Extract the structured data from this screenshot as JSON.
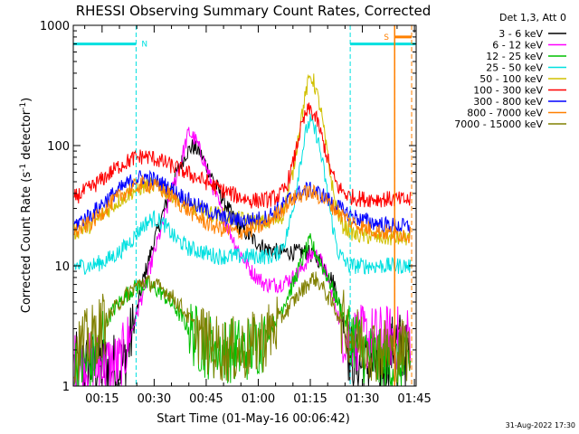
{
  "chart_data": {
    "type": "line",
    "title": "RHESSI Observing Summary Count Rates, Corrected",
    "xlabel": "Start Time (01-May-16 00:06:42)",
    "ylabel_main": "Corrected Count Rate (s",
    "ylabel_sup1": "-1",
    "ylabel_mid": " detector",
    "ylabel_sup2": "-1",
    "ylabel_end": ")",
    "footer": "31-Aug-2022 17:30",
    "y_scale": "log",
    "ylim": [
      1,
      1000
    ],
    "xlim_minutes": [
      6.7,
      105.5
    ],
    "x_ticks": [
      {
        "minute": 15,
        "label": "00:15"
      },
      {
        "minute": 30,
        "label": "00:30"
      },
      {
        "minute": 45,
        "label": "00:45"
      },
      {
        "minute": 60,
        "label": "01:00"
      },
      {
        "minute": 75,
        "label": "01:15"
      },
      {
        "minute": 90,
        "label": "01:30"
      },
      {
        "minute": 105,
        "label": "01:45"
      }
    ],
    "y_ticks": [
      {
        "value": 1,
        "label": "1"
      },
      {
        "value": 10,
        "label": "10"
      },
      {
        "value": 100,
        "label": "100"
      },
      {
        "value": 1000,
        "label": "1000"
      }
    ],
    "legend_header": "Det 1,3, Att 0",
    "legend_placement": "right",
    "series": [
      {
        "name": "3 - 6 keV",
        "color": "#000000",
        "points": [
          [
            7,
            1.5
          ],
          [
            15,
            1.5
          ],
          [
            19,
            1.5
          ],
          [
            21,
            1.5
          ],
          [
            24,
            3
          ],
          [
            27,
            8
          ],
          [
            30,
            16
          ],
          [
            33,
            30
          ],
          [
            36,
            55
          ],
          [
            39,
            85
          ],
          [
            41,
            98
          ],
          [
            43,
            90
          ],
          [
            46,
            60
          ],
          [
            50,
            35
          ],
          [
            54,
            22
          ],
          [
            58,
            17
          ],
          [
            62,
            14
          ],
          [
            66,
            13
          ],
          [
            70,
            13
          ],
          [
            72,
            13
          ],
          [
            74,
            13
          ],
          [
            76,
            12
          ],
          [
            78,
            11
          ],
          [
            80,
            9
          ],
          [
            82,
            7
          ],
          [
            84,
            4
          ],
          [
            86,
            2
          ],
          [
            88,
            1.5
          ],
          [
            92,
            1.5
          ],
          [
            96,
            1.5
          ],
          [
            100,
            2.5
          ],
          [
            104,
            1.5
          ]
        ]
      },
      {
        "name": "6 - 12 keV",
        "color": "#ff00ff",
        "points": [
          [
            7,
            1.5
          ],
          [
            20,
            1.5
          ],
          [
            23,
            2.5
          ],
          [
            26,
            5
          ],
          [
            29,
            10
          ],
          [
            32,
            20
          ],
          [
            35,
            40
          ],
          [
            38,
            80
          ],
          [
            40,
            130
          ],
          [
            42,
            110
          ],
          [
            44,
            80
          ],
          [
            47,
            45
          ],
          [
            50,
            25
          ],
          [
            54,
            14
          ],
          [
            58,
            9
          ],
          [
            62,
            7
          ],
          [
            66,
            7
          ],
          [
            70,
            8
          ],
          [
            72,
            9
          ],
          [
            74,
            11
          ],
          [
            76,
            13
          ],
          [
            78,
            11
          ],
          [
            80,
            8
          ],
          [
            82,
            5
          ],
          [
            84,
            3
          ],
          [
            86,
            2.5
          ],
          [
            90,
            2.5
          ],
          [
            96,
            2.5
          ],
          [
            104,
            2.5
          ]
        ]
      },
      {
        "name": "12 - 25 keV",
        "color": "#00c000",
        "points": [
          [
            7,
            1.5
          ],
          [
            12,
            1.5
          ],
          [
            16,
            3.5
          ],
          [
            20,
            5
          ],
          [
            24,
            6.5
          ],
          [
            28,
            7
          ],
          [
            32,
            6
          ],
          [
            36,
            4.5
          ],
          [
            40,
            3
          ],
          [
            44,
            2.2
          ],
          [
            50,
            2
          ],
          [
            56,
            2
          ],
          [
            62,
            2.5
          ],
          [
            66,
            4
          ],
          [
            70,
            7
          ],
          [
            72,
            10
          ],
          [
            74,
            14
          ],
          [
            75,
            16
          ],
          [
            77,
            12
          ],
          [
            80,
            8
          ],
          [
            83,
            5
          ],
          [
            86,
            3
          ],
          [
            90,
            2
          ],
          [
            96,
            1.5
          ],
          [
            104,
            1.5
          ]
        ]
      },
      {
        "name": "25 - 50 keV",
        "color": "#00e0e0",
        "points": [
          [
            7,
            10
          ],
          [
            12,
            10
          ],
          [
            16,
            11
          ],
          [
            20,
            13
          ],
          [
            24,
            17
          ],
          [
            27,
            22
          ],
          [
            30,
            25
          ],
          [
            33,
            22
          ],
          [
            36,
            17
          ],
          [
            40,
            14
          ],
          [
            44,
            13
          ],
          [
            48,
            12
          ],
          [
            52,
            12
          ],
          [
            56,
            12
          ],
          [
            60,
            12
          ],
          [
            64,
            12
          ],
          [
            66,
            13
          ],
          [
            68,
            17
          ],
          [
            70,
            30
          ],
          [
            72,
            70
          ],
          [
            74,
            140
          ],
          [
            75,
            160
          ],
          [
            77,
            120
          ],
          [
            79,
            60
          ],
          [
            81,
            25
          ],
          [
            83,
            13
          ],
          [
            86,
            10
          ],
          [
            90,
            10
          ],
          [
            96,
            10
          ],
          [
            104,
            10
          ]
        ]
      },
      {
        "name": "50 - 100 keV",
        "color": "#d0c000",
        "points": [
          [
            7,
            19
          ],
          [
            12,
            22
          ],
          [
            16,
            28
          ],
          [
            20,
            35
          ],
          [
            24,
            42
          ],
          [
            28,
            47
          ],
          [
            32,
            45
          ],
          [
            36,
            38
          ],
          [
            40,
            32
          ],
          [
            44,
            28
          ],
          [
            48,
            27
          ],
          [
            52,
            25
          ],
          [
            56,
            24
          ],
          [
            60,
            23
          ],
          [
            64,
            23
          ],
          [
            67,
            26
          ],
          [
            70,
            60
          ],
          [
            72,
            150
          ],
          [
            74,
            300
          ],
          [
            75,
            380
          ],
          [
            76,
            340
          ],
          [
            78,
            200
          ],
          [
            80,
            80
          ],
          [
            82,
            35
          ],
          [
            84,
            22
          ],
          [
            88,
            18
          ],
          [
            96,
            17
          ],
          [
            104,
            17
          ]
        ]
      },
      {
        "name": "100 - 300 keV",
        "color": "#ff0000",
        "points": [
          [
            7,
            37
          ],
          [
            12,
            45
          ],
          [
            16,
            55
          ],
          [
            20,
            68
          ],
          [
            24,
            78
          ],
          [
            27,
            82
          ],
          [
            30,
            78
          ],
          [
            34,
            70
          ],
          [
            38,
            62
          ],
          [
            42,
            55
          ],
          [
            46,
            48
          ],
          [
            50,
            42
          ],
          [
            54,
            38
          ],
          [
            58,
            35
          ],
          [
            62,
            35
          ],
          [
            66,
            38
          ],
          [
            68,
            45
          ],
          [
            70,
            70
          ],
          [
            72,
            130
          ],
          [
            74,
            190
          ],
          [
            75,
            200
          ],
          [
            77,
            160
          ],
          [
            79,
            100
          ],
          [
            81,
            60
          ],
          [
            83,
            45
          ],
          [
            86,
            38
          ],
          [
            90,
            36
          ],
          [
            96,
            36
          ],
          [
            104,
            35
          ]
        ]
      },
      {
        "name": "300 - 800 keV",
        "color": "#0000ff",
        "points": [
          [
            7,
            22
          ],
          [
            12,
            27
          ],
          [
            16,
            35
          ],
          [
            20,
            43
          ],
          [
            24,
            52
          ],
          [
            27,
            55
          ],
          [
            30,
            52
          ],
          [
            34,
            45
          ],
          [
            38,
            38
          ],
          [
            42,
            32
          ],
          [
            46,
            28
          ],
          [
            50,
            25
          ],
          [
            54,
            24
          ],
          [
            58,
            24
          ],
          [
            62,
            25
          ],
          [
            66,
            30
          ],
          [
            70,
            38
          ],
          [
            74,
            43
          ],
          [
            76,
            42
          ],
          [
            79,
            38
          ],
          [
            82,
            32
          ],
          [
            86,
            27
          ],
          [
            90,
            24
          ],
          [
            96,
            22
          ],
          [
            104,
            21
          ]
        ]
      },
      {
        "name": "800 - 7000 keV",
        "color": "#ff8000",
        "points": [
          [
            7,
            19
          ],
          [
            12,
            23
          ],
          [
            16,
            30
          ],
          [
            20,
            38
          ],
          [
            24,
            45
          ],
          [
            27,
            48
          ],
          [
            30,
            46
          ],
          [
            34,
            40
          ],
          [
            38,
            32
          ],
          [
            42,
            26
          ],
          [
            46,
            22
          ],
          [
            50,
            20
          ],
          [
            54,
            19
          ],
          [
            58,
            20
          ],
          [
            62,
            22
          ],
          [
            66,
            28
          ],
          [
            70,
            36
          ],
          [
            74,
            41
          ],
          [
            76,
            40
          ],
          [
            79,
            36
          ],
          [
            82,
            30
          ],
          [
            86,
            24
          ],
          [
            90,
            21
          ],
          [
            96,
            19
          ],
          [
            104,
            18
          ]
        ]
      },
      {
        "name": "7000 - 15000 keV",
        "color": "#808000",
        "points": [
          [
            7,
            2
          ],
          [
            12,
            2.5
          ],
          [
            16,
            3.5
          ],
          [
            20,
            5
          ],
          [
            24,
            6.5
          ],
          [
            27,
            7.5
          ],
          [
            30,
            7
          ],
          [
            34,
            6
          ],
          [
            38,
            4.5
          ],
          [
            42,
            3
          ],
          [
            46,
            2.2
          ],
          [
            50,
            2
          ],
          [
            56,
            2
          ],
          [
            62,
            2.5
          ],
          [
            66,
            3.5
          ],
          [
            70,
            5
          ],
          [
            72,
            6
          ],
          [
            74,
            7
          ],
          [
            76,
            8
          ],
          [
            78,
            7
          ],
          [
            81,
            5
          ],
          [
            84,
            3.5
          ],
          [
            88,
            2.5
          ],
          [
            94,
            2
          ],
          [
            104,
            2
          ]
        ]
      }
    ],
    "annotations": {
      "night": {
        "label": "N",
        "color": "#00e0e0",
        "x_start_minutes": 6.7,
        "x_end_minutes": 24.8,
        "level": 700
      },
      "night2": {
        "label": "",
        "color": "#00e0e0",
        "x_start_minutes": 86.5,
        "x_end_minutes": 105.3,
        "level": 700
      },
      "saa": {
        "label": "S",
        "color": "#ff8000",
        "x_start_minutes": 99.3,
        "x_end_minutes": 104.2,
        "level": 800
      }
    }
  }
}
